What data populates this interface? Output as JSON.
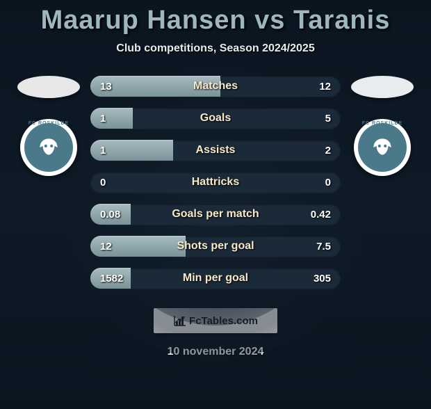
{
  "title": "Maarup Hansen vs Taranis",
  "subtitle": "Club competitions, Season 2024/2025",
  "date": "10 november 2024",
  "footer_label": "FcTables.com",
  "colors": {
    "bg_top": "#0a1520",
    "bar_fill": "#8fa6ab",
    "row_bg": "#1a2a38",
    "title_color": "#9db7bd",
    "label_color": "#f7e9c9",
    "value_color": "#ffffff",
    "flag_left": "#e8e8e8",
    "flag_right": "#e8ecee",
    "badge_ring": "#ffffff",
    "badge_inner": "#4a7a8a"
  },
  "players": {
    "left": {
      "club_text": "FC ROSKILDE"
    },
    "right": {
      "club_text": "FC ROSKILDE"
    }
  },
  "rows": [
    {
      "label": "Matches",
      "left_val": "13",
      "right_val": "12",
      "left_pct": 52,
      "right_pct": 48,
      "lower_is_better": false
    },
    {
      "label": "Goals",
      "left_val": "1",
      "right_val": "5",
      "left_pct": 17,
      "right_pct": 83,
      "lower_is_better": false
    },
    {
      "label": "Assists",
      "left_val": "1",
      "right_val": "2",
      "left_pct": 33,
      "right_pct": 67,
      "lower_is_better": false
    },
    {
      "label": "Hattricks",
      "left_val": "0",
      "right_val": "0",
      "left_pct": 0,
      "right_pct": 0,
      "lower_is_better": false
    },
    {
      "label": "Goals per match",
      "left_val": "0.08",
      "right_val": "0.42",
      "left_pct": 16,
      "right_pct": 84,
      "lower_is_better": false
    },
    {
      "label": "Shots per goal",
      "left_val": "12",
      "right_val": "7.5",
      "left_pct": 38,
      "right_pct": 62,
      "lower_is_better": true
    },
    {
      "label": "Min per goal",
      "left_val": "1582",
      "right_val": "305",
      "left_pct": 16,
      "right_pct": 84,
      "lower_is_better": true
    }
  ]
}
